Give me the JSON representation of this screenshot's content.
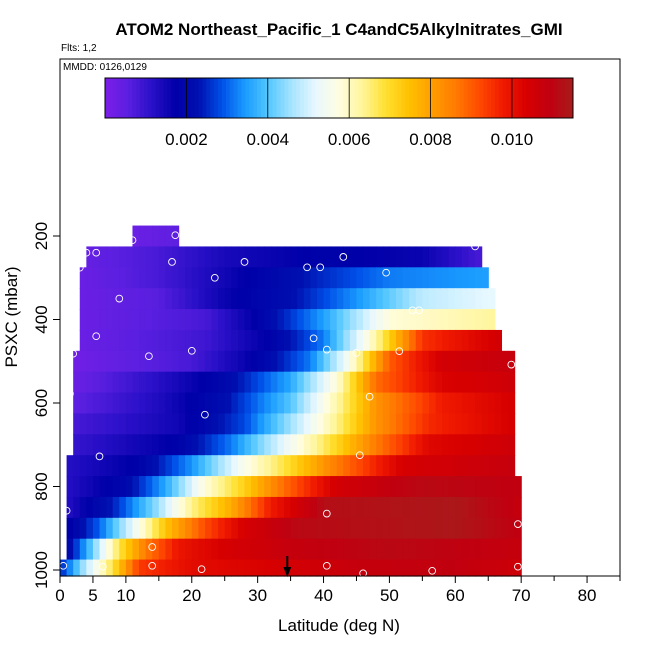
{
  "chart_data": {
    "type": "heatmap",
    "title": "ATOM2 Northeast_Pacific_1 C4andC5Alkylnitrates_GMI",
    "subtitle_flts": "Flts: 1,2",
    "subtitle_mmdd": "MMDD: 0126,0129",
    "xlabel": "Latitude (deg N)",
    "ylabel": "PSXC (mbar)",
    "xlim": [
      0,
      85
    ],
    "ylim": [
      1000,
      100
    ],
    "x_ticks": [
      0,
      5,
      10,
      20,
      30,
      40,
      50,
      60,
      70,
      80
    ],
    "y_ticks": [
      200,
      400,
      600,
      800,
      1000
    ],
    "colorbar": {
      "vmin": 0.0,
      "vmax": 0.0115,
      "tick_labels": [
        "0.002",
        "0.004",
        "0.006",
        "0.008",
        "0.010"
      ],
      "tick_values": [
        0.002,
        0.004,
        0.006,
        0.008,
        0.01
      ],
      "colors": [
        "#7b1fe8",
        "#5a1fe0",
        "#2a10c8",
        "#0000a8",
        "#0010b0",
        "#0050e8",
        "#1a9cff",
        "#55c8ff",
        "#a8e4ff",
        "#e8f8ff",
        "#fffde0",
        "#fff59a",
        "#ffe030",
        "#ffc000",
        "#ff9c00",
        "#ff7a00",
        "#ff4a00",
        "#f01a00",
        "#d80000",
        "#c00010",
        "#a81c1c"
      ]
    },
    "pressure_levels": [
      200,
      250,
      300,
      350,
      400,
      450,
      500,
      550,
      600,
      650,
      700,
      750,
      800,
      850,
      900,
      950,
      1000
    ],
    "row_extents": [
      {
        "p": 200,
        "lat_min": 11,
        "lat_max": 18
      },
      {
        "p": 250,
        "lat_min": 4,
        "lat_max": 64
      },
      {
        "p": 300,
        "lat_min": 3,
        "lat_max": 65
      },
      {
        "p": 350,
        "lat_min": 3,
        "lat_max": 66
      },
      {
        "p": 400,
        "lat_min": 3,
        "lat_max": 66
      },
      {
        "p": 450,
        "lat_min": 3,
        "lat_max": 67
      },
      {
        "p": 500,
        "lat_min": 2,
        "lat_max": 69
      },
      {
        "p": 550,
        "lat_min": 2,
        "lat_max": 69
      },
      {
        "p": 600,
        "lat_min": 2,
        "lat_max": 69
      },
      {
        "p": 650,
        "lat_min": 2,
        "lat_max": 69
      },
      {
        "p": 700,
        "lat_min": 2,
        "lat_max": 69
      },
      {
        "p": 750,
        "lat_min": 1,
        "lat_max": 69
      },
      {
        "p": 800,
        "lat_min": 1,
        "lat_max": 70
      },
      {
        "p": 850,
        "lat_min": 1,
        "lat_max": 70
      },
      {
        "p": 900,
        "lat_min": 1,
        "lat_max": 70
      },
      {
        "p": 950,
        "lat_min": 1,
        "lat_max": 70
      },
      {
        "p": 1000,
        "lat_min": 0,
        "lat_max": 70
      }
    ],
    "row_profiles": [
      {
        "p": 200,
        "stops": [
          [
            11,
            0.0003
          ],
          [
            18,
            0.0005
          ]
        ]
      },
      {
        "p": 250,
        "stops": [
          [
            4,
            0.0004
          ],
          [
            15,
            0.0008
          ],
          [
            25,
            0.0014
          ],
          [
            40,
            0.0018
          ],
          [
            55,
            0.0016
          ],
          [
            64,
            0.0008
          ]
        ]
      },
      {
        "p": 300,
        "stops": [
          [
            3,
            0.0003
          ],
          [
            15,
            0.0008
          ],
          [
            25,
            0.0015
          ],
          [
            38,
            0.0024
          ],
          [
            50,
            0.0032
          ],
          [
            65,
            0.0035
          ]
        ]
      },
      {
        "p": 350,
        "stops": [
          [
            3,
            0.0003
          ],
          [
            15,
            0.0006
          ],
          [
            25,
            0.0016
          ],
          [
            35,
            0.0022
          ],
          [
            45,
            0.0034
          ],
          [
            55,
            0.0048
          ],
          [
            66,
            0.0052
          ]
        ]
      },
      {
        "p": 400,
        "stops": [
          [
            3,
            0.0003
          ],
          [
            22,
            0.0008
          ],
          [
            30,
            0.0018
          ],
          [
            40,
            0.0035
          ],
          [
            50,
            0.0058
          ],
          [
            66,
            0.0063
          ]
        ]
      },
      {
        "p": 450,
        "stops": [
          [
            3,
            0.0003
          ],
          [
            22,
            0.0009
          ],
          [
            32,
            0.0018
          ],
          [
            40,
            0.0032
          ],
          [
            47,
            0.0058
          ],
          [
            55,
            0.0095
          ],
          [
            67,
            0.0105
          ]
        ]
      },
      {
        "p": 500,
        "stops": [
          [
            2,
            0.0002
          ],
          [
            20,
            0.0008
          ],
          [
            30,
            0.0018
          ],
          [
            38,
            0.0032
          ],
          [
            44,
            0.0056
          ],
          [
            50,
            0.009
          ],
          [
            58,
            0.0105
          ],
          [
            69,
            0.0108
          ]
        ]
      },
      {
        "p": 550,
        "stops": [
          [
            2,
            0.0003
          ],
          [
            15,
            0.0012
          ],
          [
            25,
            0.002
          ],
          [
            35,
            0.0036
          ],
          [
            42,
            0.0058
          ],
          [
            48,
            0.0088
          ],
          [
            58,
            0.0103
          ],
          [
            69,
            0.0106
          ]
        ]
      },
      {
        "p": 600,
        "stops": [
          [
            2,
            0.0005
          ],
          [
            15,
            0.0013
          ],
          [
            25,
            0.0022
          ],
          [
            35,
            0.004
          ],
          [
            42,
            0.0062
          ],
          [
            48,
            0.0082
          ],
          [
            58,
            0.0098
          ],
          [
            69,
            0.0104
          ]
        ]
      },
      {
        "p": 650,
        "stops": [
          [
            2,
            0.0008
          ],
          [
            18,
            0.0015
          ],
          [
            28,
            0.0028
          ],
          [
            36,
            0.0048
          ],
          [
            42,
            0.0064
          ],
          [
            48,
            0.0082
          ],
          [
            56,
            0.0096
          ],
          [
            69,
            0.0104
          ]
        ]
      },
      {
        "p": 700,
        "stops": [
          [
            2,
            0.001
          ],
          [
            18,
            0.0018
          ],
          [
            26,
            0.0032
          ],
          [
            34,
            0.0052
          ],
          [
            40,
            0.0066
          ],
          [
            48,
            0.0086
          ],
          [
            56,
            0.0102
          ],
          [
            69,
            0.0106
          ]
        ]
      },
      {
        "p": 750,
        "stops": [
          [
            1,
            0.0012
          ],
          [
            12,
            0.0018
          ],
          [
            20,
            0.0034
          ],
          [
            28,
            0.0056
          ],
          [
            34,
            0.0068
          ],
          [
            42,
            0.0086
          ],
          [
            52,
            0.0104
          ],
          [
            69,
            0.0108
          ]
        ]
      },
      {
        "p": 800,
        "stops": [
          [
            1,
            0.0012
          ],
          [
            10,
            0.002
          ],
          [
            16,
            0.0036
          ],
          [
            22,
            0.0058
          ],
          [
            28,
            0.0072
          ],
          [
            34,
            0.0088
          ],
          [
            42,
            0.0105
          ],
          [
            55,
            0.0111
          ],
          [
            70,
            0.0109
          ]
        ]
      },
      {
        "p": 850,
        "stops": [
          [
            1,
            0.0012
          ],
          [
            8,
            0.0024
          ],
          [
            14,
            0.0042
          ],
          [
            20,
            0.0064
          ],
          [
            26,
            0.0078
          ],
          [
            32,
            0.0098
          ],
          [
            40,
            0.0112
          ],
          [
            60,
            0.0114
          ],
          [
            70,
            0.0108
          ]
        ]
      },
      {
        "p": 900,
        "stops": [
          [
            1,
            0.0016
          ],
          [
            6,
            0.003
          ],
          [
            11,
            0.0052
          ],
          [
            16,
            0.0074
          ],
          [
            22,
            0.0092
          ],
          [
            28,
            0.0104
          ],
          [
            36,
            0.0111
          ],
          [
            60,
            0.0114
          ],
          [
            70,
            0.0109
          ]
        ]
      },
      {
        "p": 950,
        "stops": [
          [
            1,
            0.0018
          ],
          [
            5,
            0.0042
          ],
          [
            9,
            0.0068
          ],
          [
            13,
            0.0086
          ],
          [
            18,
            0.0099
          ],
          [
            25,
            0.0104
          ],
          [
            35,
            0.0108
          ],
          [
            50,
            0.0111
          ],
          [
            70,
            0.0108
          ]
        ]
      },
      {
        "p": 1000,
        "stops": [
          [
            0,
            0.0024
          ],
          [
            4,
            0.0048
          ],
          [
            8,
            0.0068
          ],
          [
            12,
            0.0094
          ],
          [
            20,
            0.0101
          ],
          [
            30,
            0.0103
          ],
          [
            45,
            0.0108
          ],
          [
            60,
            0.0109
          ],
          [
            70,
            0.0106
          ]
        ]
      }
    ],
    "observations": [
      {
        "lat": 11,
        "p": 210
      },
      {
        "lat": 17.5,
        "p": 198
      },
      {
        "lat": 4,
        "p": 240
      },
      {
        "lat": 5.5,
        "p": 240
      },
      {
        "lat": 17,
        "p": 262
      },
      {
        "lat": 28,
        "p": 262
      },
      {
        "lat": 43,
        "p": 250
      },
      {
        "lat": 63,
        "p": 225
      },
      {
        "lat": 3,
        "p": 276
      },
      {
        "lat": 23.5,
        "p": 300
      },
      {
        "lat": 37.5,
        "p": 275
      },
      {
        "lat": 39.5,
        "p": 275
      },
      {
        "lat": 49.5,
        "p": 288
      },
      {
        "lat": 9,
        "p": 350
      },
      {
        "lat": 53.5,
        "p": 378
      },
      {
        "lat": 54.5,
        "p": 378
      },
      {
        "lat": 5.5,
        "p": 440
      },
      {
        "lat": 38.5,
        "p": 445
      },
      {
        "lat": 40.5,
        "p": 472
      },
      {
        "lat": 2,
        "p": 482
      },
      {
        "lat": 13.5,
        "p": 488
      },
      {
        "lat": 20,
        "p": 475
      },
      {
        "lat": 45,
        "p": 480
      },
      {
        "lat": 51.5,
        "p": 476
      },
      {
        "lat": 68.5,
        "p": 508
      },
      {
        "lat": 1.5,
        "p": 578
      },
      {
        "lat": 47,
        "p": 585
      },
      {
        "lat": 22,
        "p": 628
      },
      {
        "lat": 6,
        "p": 728
      },
      {
        "lat": 45.5,
        "p": 725
      },
      {
        "lat": 1,
        "p": 858
      },
      {
        "lat": 40.5,
        "p": 865
      },
      {
        "lat": 69.5,
        "p": 890
      },
      {
        "lat": 14,
        "p": 945
      },
      {
        "lat": 0.5,
        "p": 990
      },
      {
        "lat": 6.5,
        "p": 992
      },
      {
        "lat": 14,
        "p": 990
      },
      {
        "lat": 21.5,
        "p": 998
      },
      {
        "lat": 40.5,
        "p": 990
      },
      {
        "lat": 46,
        "p": 1008
      },
      {
        "lat": 56.5,
        "p": 1002
      },
      {
        "lat": 69.5,
        "p": 992
      }
    ],
    "marker": {
      "lat": 34.5
    }
  }
}
